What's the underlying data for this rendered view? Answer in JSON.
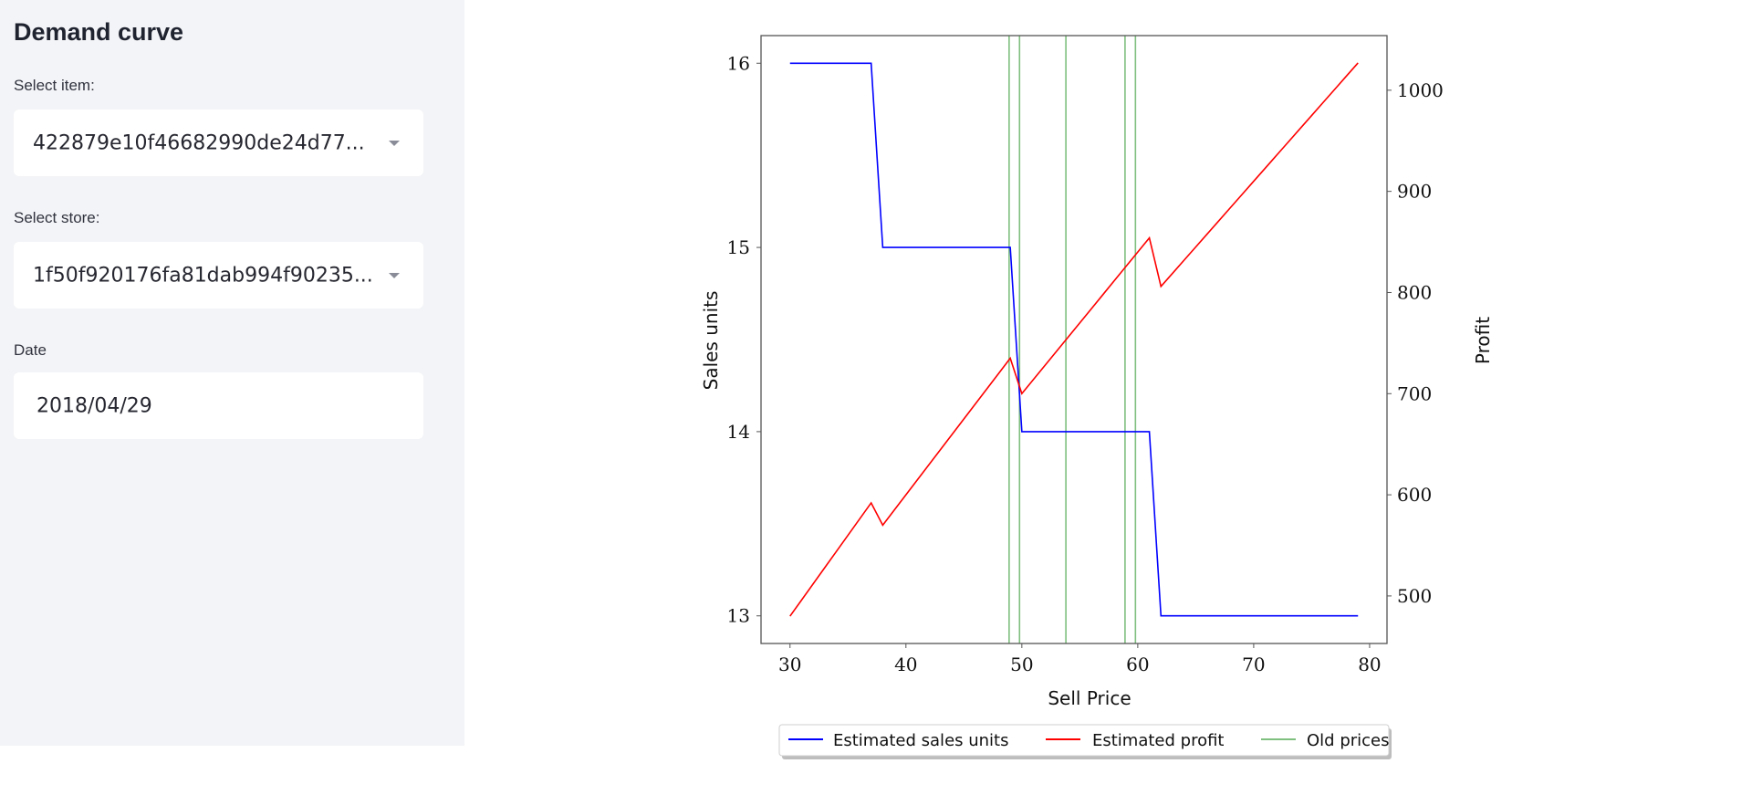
{
  "sidebar": {
    "title": "Demand curve",
    "item_label": "Select item:",
    "item_value": "422879e10f46682990de24d77...",
    "store_label": "Select store:",
    "store_value": "1f50f920176fa81dab994f90235...",
    "date_label": "Date",
    "date_value": "2018/04/29"
  },
  "colors": {
    "sales": "#0000ff",
    "profit": "#ff0000",
    "old_prices": "#7fbf7f",
    "sidebar_bg": "#f3f4f7"
  },
  "chart_data": {
    "type": "line",
    "title": "",
    "xlabel": "Sell Price",
    "ylabel": "Sales units",
    "y2label": "Profit",
    "xlim": [
      27.5,
      81.5
    ],
    "ylim": [
      12.85,
      16.15
    ],
    "y2lim": [
      453,
      1054
    ],
    "x_ticks": [
      30,
      40,
      50,
      60,
      70,
      80
    ],
    "y_ticks": [
      13,
      14,
      15,
      16
    ],
    "y2_ticks": [
      500,
      600,
      700,
      800,
      900,
      1000
    ],
    "grid": false,
    "legend": {
      "position": "bottom-center-outside",
      "entries": [
        "Estimated sales units",
        "Estimated profit",
        "Old prices"
      ]
    },
    "x": [
      30,
      31,
      32,
      33,
      34,
      35,
      36,
      37,
      38,
      39,
      40,
      41,
      42,
      43,
      44,
      45,
      46,
      47,
      48,
      49,
      50,
      51,
      52,
      53,
      54,
      55,
      56,
      57,
      58,
      59,
      60,
      61,
      62,
      63,
      64,
      65,
      66,
      67,
      68,
      69,
      70,
      71,
      72,
      73,
      74,
      75,
      76,
      77,
      78,
      79
    ],
    "series": [
      {
        "name": "Estimated sales units",
        "axis": "left",
        "values": [
          16,
          16,
          16,
          16,
          16,
          16,
          16,
          16,
          15,
          15,
          15,
          15,
          15,
          15,
          15,
          15,
          15,
          15,
          15,
          15,
          14,
          14,
          14,
          14,
          14,
          14,
          14,
          14,
          14,
          14,
          14,
          14,
          13,
          13,
          13,
          13,
          13,
          13,
          13,
          13,
          13,
          13,
          13,
          13,
          13,
          13,
          13,
          13,
          13,
          13
        ]
      },
      {
        "name": "Estimated profit",
        "axis": "right",
        "values": [
          480,
          496,
          512,
          528,
          544,
          560,
          576,
          592,
          570,
          585,
          600,
          615,
          630,
          645,
          660,
          675,
          690,
          705,
          720,
          735,
          700,
          714,
          728,
          742,
          756,
          770,
          784,
          798,
          812,
          826,
          840,
          854,
          806,
          819,
          832,
          845,
          858,
          871,
          884,
          897,
          910,
          923,
          936,
          949,
          962,
          975,
          988,
          1001,
          1014,
          1027
        ]
      }
    ],
    "vlines": {
      "name": "Old prices",
      "x": [
        48.9,
        49.8,
        53.8,
        58.9,
        59.8
      ]
    }
  }
}
